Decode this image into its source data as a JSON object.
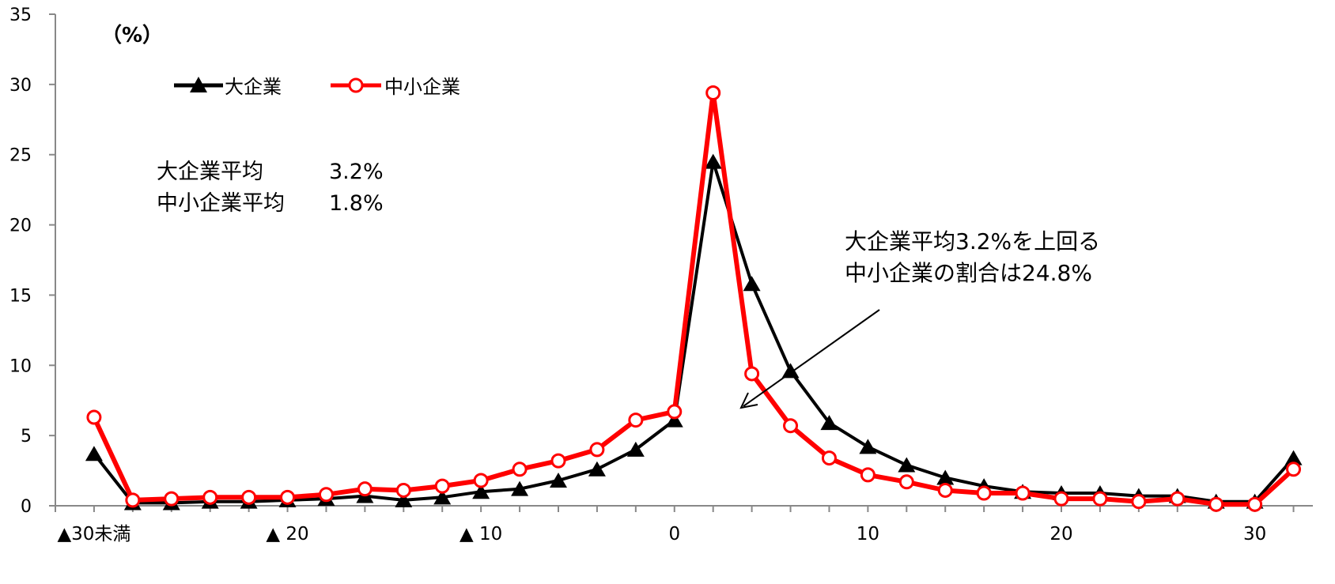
{
  "unit_label": "（%）",
  "legend": [
    {
      "label": "大企業",
      "color": "#000000",
      "marker": "triangle"
    },
    {
      "label": "中小企業",
      "color": "#ff0000",
      "marker": "open-circle"
    }
  ],
  "averages": [
    {
      "label": "大企業平均",
      "value": "3.2%"
    },
    {
      "label": "中小企業平均",
      "value": "1.8%"
    }
  ],
  "callout": {
    "line1": "大企業平均3.2%を上回る",
    "line2": "中小企業の割合は24.8%"
  },
  "chart_data": {
    "type": "line",
    "title": "",
    "xlabel": "",
    "ylabel": "（%）",
    "ylim": [
      0,
      35
    ],
    "yticks": [
      0,
      5,
      10,
      15,
      20,
      25,
      30,
      35
    ],
    "xlim": [
      -32,
      33
    ],
    "x": [
      -30,
      -28,
      -26,
      -24,
      -22,
      -20,
      -18,
      -16,
      -14,
      -12,
      -10,
      -8,
      -6,
      -4,
      -2,
      0,
      2,
      4,
      6,
      8,
      10,
      12,
      14,
      16,
      18,
      20,
      22,
      24,
      26,
      28,
      30,
      32
    ],
    "xtick_labels": [
      {
        "x": -30,
        "label": "▲30未満"
      },
      {
        "x": -20,
        "label": "▲ 20"
      },
      {
        "x": -10,
        "label": "▲ 10"
      },
      {
        "x": 0,
        "label": "0"
      },
      {
        "x": 10,
        "label": "10"
      },
      {
        "x": 20,
        "label": "20"
      },
      {
        "x": 30,
        "label": "30"
      }
    ],
    "grid": false,
    "legend_position": "top-left",
    "series": [
      {
        "name": "大企業",
        "color": "#000000",
        "marker": "triangle",
        "values": [
          3.7,
          0.2,
          0.2,
          0.3,
          0.3,
          0.4,
          0.5,
          0.7,
          0.4,
          0.6,
          1.0,
          1.2,
          1.8,
          2.6,
          4.0,
          6.1,
          24.5,
          15.8,
          9.6,
          5.9,
          4.2,
          2.9,
          2.0,
          1.4,
          1.0,
          0.9,
          0.9,
          0.7,
          0.7,
          0.3,
          0.3,
          3.4
        ]
      },
      {
        "name": "中小企業",
        "color": "#ff0000",
        "marker": "open-circle",
        "values": [
          6.3,
          0.4,
          0.5,
          0.6,
          0.6,
          0.6,
          0.8,
          1.2,
          1.1,
          1.4,
          1.8,
          2.6,
          3.2,
          4.0,
          6.1,
          6.7,
          29.4,
          9.4,
          5.7,
          3.4,
          2.2,
          1.7,
          1.1,
          0.9,
          0.9,
          0.5,
          0.5,
          0.3,
          0.5,
          0.1,
          0.1,
          2.6
        ]
      }
    ]
  }
}
